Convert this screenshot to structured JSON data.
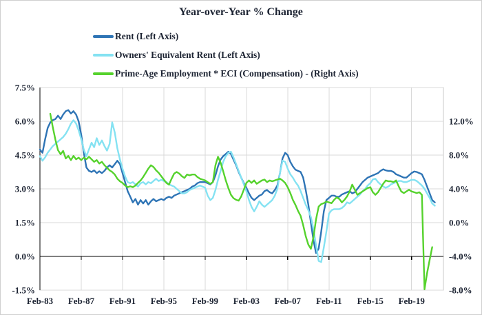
{
  "title": "Year-over-Year % Change",
  "legend": [
    {
      "label": "Rent (Left Axis)",
      "color": "#2e74b5"
    },
    {
      "label": "Owners' Equivalent Rent (Left Axis)",
      "color": "#84e2f2"
    },
    {
      "label": "Prime-Age Employment * ECI (Compensation) - (Right Axis)",
      "color": "#55d22c"
    }
  ],
  "chart_data": {
    "type": "line",
    "title": "Year-over-Year % Change",
    "grid": true,
    "legend_position": "top-left",
    "left_axis": {
      "min": -1.5,
      "max": 7.5,
      "tick_values": [
        7.5,
        6.0,
        4.5,
        3.0,
        1.5,
        0.0,
        -1.5
      ],
      "tick_labels": [
        "7.5%",
        "6.0%",
        "4.5%",
        "3.0%",
        "1.5%",
        "0.0%",
        "-1.5%"
      ]
    },
    "right_axis": {
      "min": -8.0,
      "max": 16.0,
      "tick_values": [
        12.0,
        8.0,
        4.0,
        0.0,
        -4.0,
        -8.0
      ],
      "tick_labels": [
        "12.0%",
        "8.0%",
        "4.0%",
        "0.0%",
        "-4.0%",
        "-8.0%"
      ]
    },
    "x_axis": {
      "min_year": 1983.083,
      "max_year": 2022.17,
      "tick_years": [
        1983.083,
        1987.083,
        1991.083,
        1995.083,
        1999.083,
        2003.083,
        2007.083,
        2011.083,
        2015.083,
        2019.083
      ],
      "tick_labels": [
        "Feb-83",
        "Feb-87",
        "Feb-91",
        "Feb-95",
        "Feb-99",
        "Feb-03",
        "Feb-07",
        "Feb-11",
        "Feb-15",
        "Feb-19"
      ],
      "zero_line_left_value": 0.0
    },
    "series": [
      {
        "name": "Rent (Left Axis)",
        "axis": "left",
        "color": "#2e74b5",
        "start_year": 1983.083,
        "step_years": 0.25,
        "values": [
          4.75,
          4.6,
          5.2,
          5.7,
          5.95,
          6.05,
          6.1,
          6.25,
          6.1,
          6.3,
          6.45,
          6.5,
          6.35,
          6.45,
          6.3,
          6.0,
          5.4,
          4.6,
          3.95,
          3.8,
          3.75,
          3.82,
          3.7,
          3.78,
          3.7,
          3.8,
          3.95,
          4.05,
          3.95,
          4.1,
          4.25,
          4.1,
          3.7,
          3.3,
          2.9,
          2.65,
          2.4,
          2.55,
          2.3,
          2.5,
          2.35,
          2.5,
          2.3,
          2.45,
          2.55,
          2.45,
          2.5,
          2.55,
          2.5,
          2.6,
          2.65,
          2.6,
          2.7,
          2.75,
          2.8,
          2.85,
          2.9,
          2.95,
          3.0,
          3.1,
          3.15,
          3.25,
          3.3,
          3.3,
          3.3,
          3.25,
          3.2,
          3.3,
          3.6,
          4.0,
          4.3,
          4.45,
          4.55,
          4.65,
          4.55,
          4.3,
          4.05,
          3.75,
          3.5,
          3.25,
          3.05,
          2.8,
          2.6,
          2.5,
          2.6,
          2.7,
          2.75,
          2.9,
          2.95,
          2.85,
          2.8,
          2.95,
          3.15,
          3.7,
          4.35,
          4.6,
          4.5,
          4.2,
          4.0,
          3.85,
          3.8,
          3.75,
          3.5,
          2.95,
          2.3,
          1.5,
          0.7,
          0.15,
          0.35,
          1.1,
          2.0,
          2.5,
          2.6,
          2.7,
          2.7,
          2.65,
          2.65,
          2.75,
          2.8,
          2.85,
          2.9,
          2.8,
          2.85,
          3.0,
          3.15,
          3.3,
          3.4,
          3.5,
          3.55,
          3.6,
          3.65,
          3.7,
          3.8,
          3.87,
          3.82,
          3.8,
          3.8,
          3.75,
          3.65,
          3.6,
          3.55,
          3.5,
          3.5,
          3.6,
          3.7,
          3.77,
          3.75,
          3.7,
          3.65,
          3.4,
          3.1,
          2.8,
          2.5,
          2.4
        ]
      },
      {
        "name": "Owners' Equivalent Rent (Left Axis)",
        "axis": "left",
        "color": "#84e2f2",
        "start_year": 1983.083,
        "step_years": 0.25,
        "values": [
          4.45,
          4.25,
          4.4,
          4.6,
          4.75,
          4.9,
          5.0,
          5.1,
          5.2,
          5.3,
          5.45,
          5.65,
          5.9,
          6.05,
          5.9,
          5.6,
          5.2,
          4.75,
          4.45,
          4.75,
          5.05,
          4.85,
          5.25,
          4.95,
          5.15,
          4.9,
          4.7,
          5.0,
          5.95,
          5.5,
          4.8,
          4.3,
          3.9,
          3.55,
          3.3,
          3.25,
          3.3,
          3.2,
          3.1,
          3.25,
          3.3,
          3.2,
          3.3,
          3.25,
          3.35,
          3.45,
          3.35,
          3.4,
          3.35,
          3.3,
          3.2,
          3.15,
          3.1,
          3.0,
          2.9,
          2.8,
          2.8,
          2.85,
          2.95,
          3.0,
          3.05,
          3.1,
          3.15,
          3.1,
          3.05,
          2.7,
          2.5,
          2.6,
          2.95,
          3.4,
          3.8,
          4.2,
          4.45,
          4.6,
          4.65,
          4.4,
          4.1,
          3.8,
          3.5,
          3.2,
          2.9,
          2.5,
          2.2,
          2.0,
          2.2,
          2.45,
          2.3,
          2.2,
          2.3,
          2.4,
          2.5,
          2.7,
          3.0,
          3.7,
          4.25,
          4.2,
          3.9,
          3.65,
          3.5,
          3.3,
          3.15,
          2.9,
          2.6,
          2.3,
          2.05,
          1.75,
          1.2,
          0.5,
          -0.2,
          -0.25,
          0.4,
          1.1,
          1.9,
          2.05,
          2.1,
          2.1,
          2.1,
          2.15,
          2.25,
          2.4,
          2.35,
          2.45,
          2.55,
          2.65,
          2.75,
          2.9,
          3.0,
          3.15,
          3.25,
          3.42,
          3.45,
          3.3,
          3.2,
          3.1,
          3.05,
          3.1,
          3.2,
          3.25,
          3.3,
          3.35,
          3.35,
          3.3,
          3.3,
          3.35,
          3.4,
          3.4,
          3.35,
          3.25,
          3.15,
          3.0,
          2.8,
          2.6,
          2.35,
          2.25
        ]
      },
      {
        "name": "Prime-Age Employment * ECI (Compensation) - (Right Axis)",
        "axis": "right",
        "color": "#55d22c",
        "start_year": 1984.083,
        "step_years": 0.25,
        "values": [
          12.9,
          11.3,
          9.8,
          8.6,
          8.1,
          8.5,
          7.6,
          7.9,
          7.4,
          7.9,
          7.5,
          7.7,
          7.4,
          7.7,
          7.5,
          7.8,
          7.5,
          7.2,
          7.4,
          7.0,
          7.2,
          6.8,
          6.5,
          6.2,
          6.0,
          5.7,
          5.2,
          4.9,
          4.7,
          4.4,
          4.2,
          4.3,
          4.2,
          4.4,
          4.7,
          5.0,
          5.4,
          5.9,
          6.4,
          6.8,
          6.6,
          6.2,
          5.9,
          5.5,
          5.1,
          4.7,
          4.5,
          5.2,
          5.8,
          6.0,
          5.8,
          5.5,
          5.3,
          5.7,
          5.6,
          5.7,
          5.7,
          5.4,
          5.2,
          5.1,
          5.0,
          4.8,
          4.6,
          4.8,
          6.8,
          7.8,
          7.1,
          6.1,
          5.0,
          4.1,
          3.3,
          2.9,
          2.7,
          2.6,
          3.1,
          3.9,
          4.7,
          5.0,
          4.7,
          5.0,
          4.6,
          4.8,
          5.0,
          5.1,
          4.8,
          5.0,
          4.9,
          5.0,
          5.1,
          5.2,
          5.0,
          4.7,
          4.2,
          3.5,
          2.7,
          2.1,
          1.4,
          0.8,
          -0.3,
          -1.6,
          -2.6,
          -3.1,
          -1.7,
          0.4,
          1.9,
          2.2,
          2.3,
          2.5,
          2.4,
          2.3,
          2.7,
          3.0,
          2.8,
          2.4,
          2.7,
          3.1,
          3.7,
          4.5,
          3.9,
          3.3,
          3.5,
          3.7,
          3.9,
          4.1,
          4.2,
          3.6,
          3.3,
          3.6,
          4.1,
          4.6,
          5.0,
          4.9,
          4.9,
          4.8,
          5.0,
          4.3,
          3.7,
          3.5,
          3.7,
          3.9,
          3.7,
          3.6,
          3.5,
          3.6,
          3.3,
          -7.9,
          -6.0,
          -4.4,
          -2.9
        ]
      }
    ],
    "colors": {
      "grid": "#d9d9d9",
      "frame": "#c9c9c9",
      "axis": "#000000",
      "text": "#1d2433"
    }
  }
}
